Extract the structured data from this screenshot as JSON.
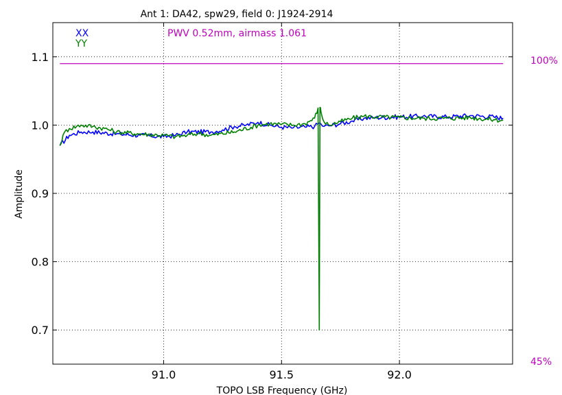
{
  "chart_data": {
    "type": "line",
    "title": "Ant 1: DA42,  spw29,  field 0: J1924-2914",
    "xlabel": "TOPO LSB Frequency (GHz)",
    "ylabel": "Amplitude",
    "xlim": [
      90.53,
      92.48
    ],
    "ylim": [
      0.65,
      1.15
    ],
    "x_ticks": [
      "91.0",
      "91.5",
      "92.0"
    ],
    "x_tick_values": [
      91.0,
      91.5,
      92.0
    ],
    "y_ticks": [
      "0.7",
      "0.8",
      "0.9",
      "1.0",
      "1.1"
    ],
    "y_tick_values": [
      0.7,
      0.8,
      0.9,
      1.0,
      1.1
    ],
    "grid": true,
    "legend": "top-left",
    "annotation": "PWV 0.52mm, airmass 1.061",
    "right_axis": {
      "top_label": "100%",
      "bottom_label": "45%",
      "line_value": 1.09,
      "color": "#bf00bf"
    },
    "series": [
      {
        "name": "XX",
        "color": "#0000ff",
        "x": [
          90.56,
          90.6,
          90.65,
          90.7,
          90.8,
          90.9,
          91.0,
          91.05,
          91.1,
          91.2,
          91.25,
          91.3,
          91.35,
          91.4,
          91.45,
          91.5,
          91.55,
          91.6,
          91.64,
          91.66,
          91.68,
          91.7,
          91.75,
          91.8,
          91.85,
          91.9,
          92.0,
          92.1,
          92.2,
          92.3,
          92.4,
          92.44
        ],
        "y": [
          0.97,
          0.985,
          0.99,
          0.99,
          0.987,
          0.985,
          0.983,
          0.985,
          0.99,
          0.99,
          0.993,
          0.998,
          1.0,
          1.004,
          1.0,
          0.997,
          0.996,
          0.997,
          0.998,
          1.003,
          0.998,
          0.999,
          1.002,
          1.006,
          1.01,
          1.011,
          1.012,
          1.013,
          1.012,
          1.014,
          1.012,
          1.01
        ]
      },
      {
        "name": "YY",
        "color": "#008000",
        "x": [
          90.56,
          90.58,
          90.6,
          90.65,
          90.7,
          90.75,
          90.8,
          90.9,
          91.0,
          91.05,
          91.1,
          91.15,
          91.2,
          91.3,
          91.4,
          91.45,
          91.5,
          91.55,
          91.6,
          91.64,
          91.655,
          91.66,
          91.663,
          91.667,
          91.67,
          91.68,
          91.7,
          91.75,
          91.8,
          91.85,
          91.9,
          92.0,
          92.1,
          92.2,
          92.3,
          92.4,
          92.44
        ],
        "y": [
          0.97,
          0.99,
          0.995,
          1.0,
          0.998,
          0.995,
          0.99,
          0.987,
          0.985,
          0.983,
          0.985,
          0.988,
          0.985,
          0.99,
          1.0,
          1.002,
          1.001,
          1.0,
          1.002,
          1.01,
          1.025,
          0.7,
          1.026,
          1.02,
          1.015,
          1.005,
          1.0,
          1.005,
          1.01,
          1.013,
          1.012,
          1.011,
          1.01,
          1.01,
          1.011,
          1.008,
          1.007
        ]
      }
    ]
  }
}
